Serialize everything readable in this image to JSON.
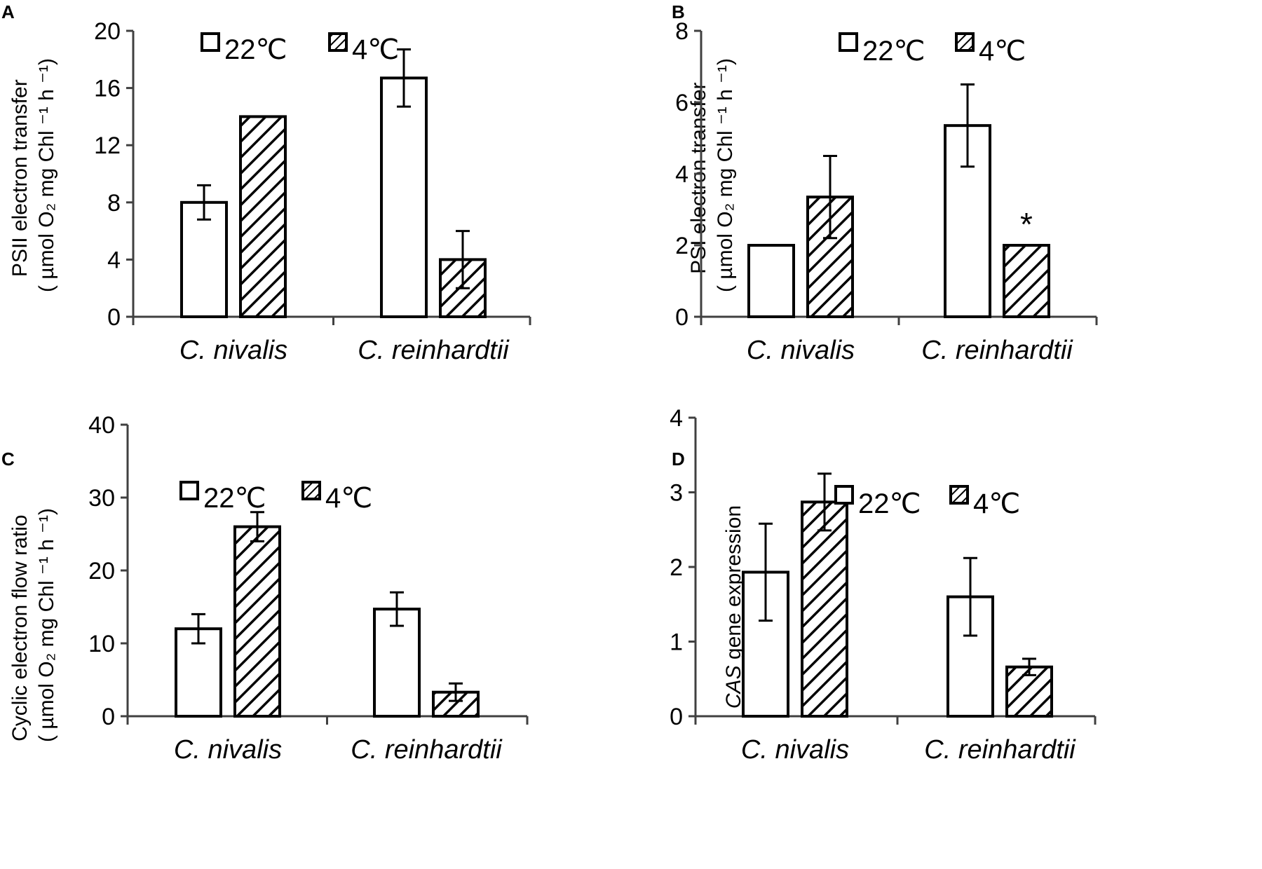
{
  "figure": {
    "series_names": [
      "22℃",
      "4℃"
    ],
    "colors": {
      "bar_fill": "#ffffff",
      "stroke": "#000000",
      "axis": "#404040"
    }
  },
  "chart_data": [
    {
      "panel": "A",
      "type": "bar",
      "categories": [
        "C. nivalis",
        "C. reinhardtii"
      ],
      "series": [
        {
          "name": "22℃",
          "pattern": "open",
          "values": [
            8.0,
            16.7
          ],
          "errors": [
            1.2,
            2.0
          ]
        },
        {
          "name": "4℃",
          "pattern": "hatched",
          "values": [
            14.0,
            4.0
          ],
          "errors": [
            0,
            2.0
          ]
        }
      ],
      "ylabel_line1": "PSII electron transfer",
      "ylabel_line2": "( µmol O₂ mg Chl ⁻¹ h ⁻¹)",
      "ylim": [
        0,
        20
      ],
      "yticks": [
        0,
        4,
        8,
        12,
        16,
        20
      ],
      "annotations": [],
      "legend": "top-left"
    },
    {
      "panel": "B",
      "type": "bar",
      "categories": [
        "C. nivalis",
        "C. reinhardtii"
      ],
      "series": [
        {
          "name": "22℃",
          "pattern": "open",
          "values": [
            2.0,
            5.35
          ],
          "errors": [
            0,
            1.15
          ]
        },
        {
          "name": "4℃",
          "pattern": "hatched",
          "values": [
            3.35,
            2.0
          ],
          "errors": [
            1.15,
            0
          ]
        }
      ],
      "ylabel_line1": "PSI electron transfer",
      "ylabel_line2": "( µmol O₂ mg Chl ⁻¹ h ⁻¹)",
      "ylim": [
        0,
        8
      ],
      "yticks": [
        0,
        2,
        4,
        6,
        8
      ],
      "annotations": [
        {
          "text": "*",
          "category": 1,
          "series": 1
        }
      ],
      "legend": "top-left"
    },
    {
      "panel": "C",
      "type": "bar",
      "categories": [
        "C. nivalis",
        "C. reinhardtii"
      ],
      "series": [
        {
          "name": "22℃",
          "pattern": "open",
          "values": [
            12.0,
            14.7
          ],
          "errors": [
            2.0,
            2.3
          ]
        },
        {
          "name": "4℃",
          "pattern": "hatched",
          "values": [
            26.0,
            3.3
          ],
          "errors": [
            2.0,
            1.2
          ]
        }
      ],
      "ylabel_line1": "Cyclic electron flow ratio",
      "ylabel_line2": "( µmol O₂ mg Chl  ⁻¹ h ⁻¹)",
      "ylim": [
        0,
        40
      ],
      "yticks": [
        0,
        10,
        20,
        30,
        40
      ],
      "annotations": [],
      "legend": "top-left"
    },
    {
      "panel": "D",
      "type": "bar",
      "categories": [
        "C. nivalis",
        "C. reinhardtii"
      ],
      "series": [
        {
          "name": "22℃",
          "pattern": "open",
          "values": [
            1.93,
            1.6
          ],
          "errors": [
            0.65,
            0.52
          ]
        },
        {
          "name": "4℃",
          "pattern": "hatched",
          "values": [
            2.87,
            0.66
          ],
          "errors": [
            0.38,
            0.11
          ]
        }
      ],
      "ylabel_italic": "CAS",
      "ylabel_line1": " gene expression",
      "ylim": [
        0,
        4
      ],
      "yticks": [
        0,
        1,
        2,
        3,
        4
      ],
      "annotations": [],
      "legend": "top-left"
    }
  ]
}
